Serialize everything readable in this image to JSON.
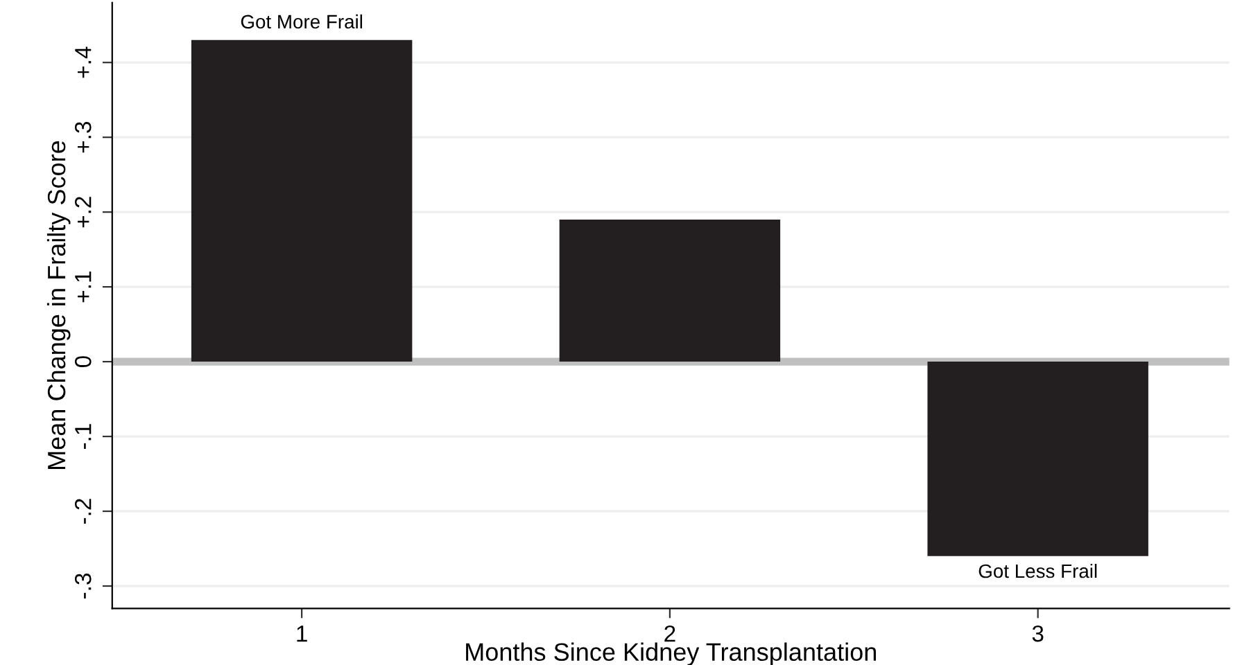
{
  "chart_data": {
    "type": "bar",
    "xlabel": "Months Since Kidney Transplantation",
    "ylabel": "Mean Change in Frailty Score",
    "categories": [
      "1",
      "2",
      "3"
    ],
    "values": [
      0.43,
      0.19,
      -0.26
    ],
    "color": "#231f20",
    "ylim": [
      -0.33,
      0.48
    ],
    "yticks": [
      {
        "value": -0.3,
        "label": "-.3"
      },
      {
        "value": -0.2,
        "label": "-.2"
      },
      {
        "value": -0.1,
        "label": "-.1"
      },
      0,
      {
        "value": 0.1,
        "label": "+.1"
      },
      {
        "value": 0.2,
        "label": "+.2"
      },
      {
        "value": 0.3,
        "label": "+.3"
      },
      {
        "value": 0.4,
        "label": "+.4"
      }
    ],
    "grid": "y",
    "ref_lines": [
      {
        "axis": "y",
        "value": 0,
        "color": "#c0c0c0"
      }
    ],
    "annotations": [
      {
        "text": "Got More Frail",
        "x": "1",
        "y": 0.43
      },
      {
        "text": "Got Less Frail",
        "x": "3",
        "y": -0.26
      }
    ]
  }
}
